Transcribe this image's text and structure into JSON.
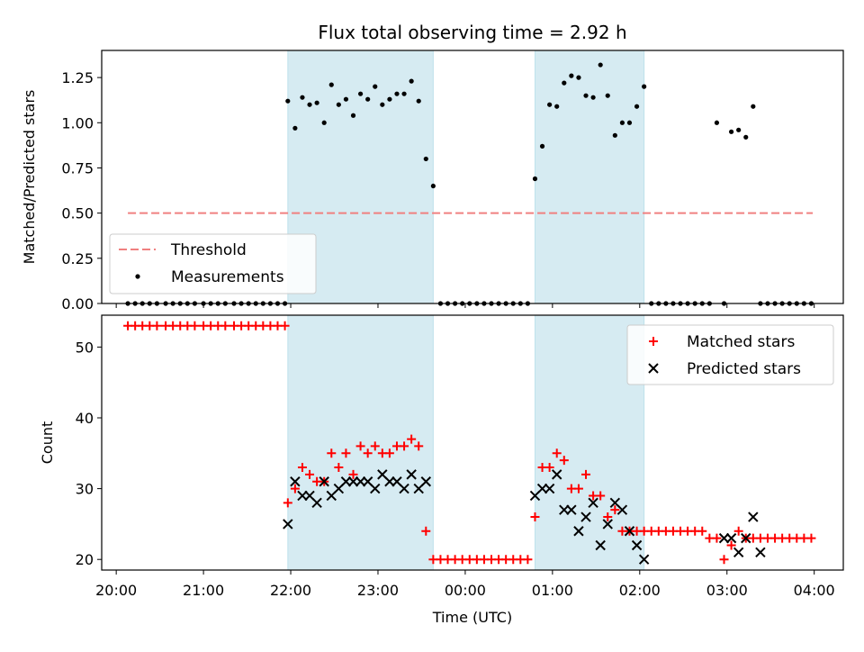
{
  "chart_data": [
    {
      "type": "scatter",
      "title": "Flux total observing time = 2.92 h",
      "xlabel": "",
      "ylabel": "Matched/Predicted stars",
      "ylim": [
        0,
        1.4
      ],
      "yticks": [
        "0.00",
        "0.25",
        "0.50",
        "0.75",
        "1.00",
        "1.25"
      ],
      "xlim": [
        "19:50",
        "04:20"
      ],
      "shaded_intervals": [
        [
          "21:58",
          "23:38"
        ],
        [
          "00:48",
          "02:03"
        ]
      ],
      "legend_position": "lower-left",
      "series": [
        {
          "name": "Threshold",
          "style": "dashed-line",
          "color": "#f08080",
          "x": [
            "20:08",
            "03:59"
          ],
          "y": [
            0.5,
            0.5
          ]
        },
        {
          "name": "Measurements",
          "style": "dot",
          "color": "#000000",
          "x": [
            "20:08",
            "20:13",
            "20:18",
            "20:23",
            "20:28",
            "20:34",
            "20:39",
            "20:44",
            "20:49",
            "20:54",
            "21:00",
            "21:05",
            "21:10",
            "21:15",
            "21:21",
            "21:26",
            "21:31",
            "21:36",
            "21:41",
            "21:46",
            "21:51",
            "21:56",
            "21:58",
            "22:03",
            "22:08",
            "22:13",
            "22:18",
            "22:23",
            "22:28",
            "22:33",
            "22:38",
            "22:43",
            "22:48",
            "22:53",
            "22:58",
            "23:03",
            "23:08",
            "23:13",
            "23:18",
            "23:23",
            "23:28",
            "23:33",
            "23:38",
            "23:43",
            "23:48",
            "23:53",
            "23:58",
            "00:03",
            "00:08",
            "00:13",
            "00:18",
            "00:23",
            "00:28",
            "00:33",
            "00:38",
            "00:43",
            "00:48",
            "00:53",
            "00:58",
            "01:03",
            "01:08",
            "01:13",
            "01:18",
            "01:23",
            "01:28",
            "01:33",
            "01:38",
            "01:43",
            "01:48",
            "01:53",
            "01:58",
            "02:03",
            "02:08",
            "02:13",
            "02:18",
            "02:23",
            "02:28",
            "02:33",
            "02:38",
            "02:43",
            "02:48",
            "02:53",
            "02:58",
            "03:03",
            "03:08",
            "03:13",
            "03:18",
            "03:23",
            "03:28",
            "03:33",
            "03:38",
            "03:43",
            "03:48",
            "03:53",
            "03:58"
          ],
          "y": [
            0,
            0,
            0,
            0,
            0,
            0,
            0,
            0,
            0,
            0,
            0,
            0,
            0,
            0,
            0,
            0,
            0,
            0,
            0,
            0,
            0,
            0,
            1.12,
            0.97,
            1.14,
            1.1,
            1.11,
            1.0,
            1.21,
            1.1,
            1.13,
            1.04,
            1.16,
            1.13,
            1.2,
            1.1,
            1.13,
            1.16,
            1.16,
            1.23,
            1.12,
            0.8,
            0.65,
            0,
            0,
            0,
            0,
            0,
            0,
            0,
            0,
            0,
            0,
            0,
            0,
            0,
            0.69,
            0.87,
            1.1,
            1.09,
            1.22,
            1.26,
            1.25,
            1.15,
            1.14,
            1.32,
            1.15,
            0.93,
            1.0,
            1.0,
            1.09,
            1.2,
            0,
            0,
            0,
            0,
            0,
            0,
            0,
            0,
            0,
            1.0,
            0,
            0.95,
            0.96,
            0.92,
            1.09,
            0,
            0,
            0,
            0,
            0,
            0,
            0,
            0
          ]
        }
      ]
    },
    {
      "type": "scatter",
      "title": "",
      "xlabel": "Time (UTC)",
      "ylabel": "Count",
      "ylim": [
        18.5,
        54.5
      ],
      "yticks": [
        "20",
        "30",
        "40",
        "50"
      ],
      "xlim": [
        "19:50",
        "04:20"
      ],
      "xticks": [
        "20:00",
        "21:00",
        "22:00",
        "23:00",
        "00:00",
        "01:00",
        "02:00",
        "03:00",
        "04:00"
      ],
      "shaded_intervals": [
        [
          "21:58",
          "23:38"
        ],
        [
          "00:48",
          "02:03"
        ]
      ],
      "legend_position": "upper-right",
      "series": [
        {
          "name": "Matched stars",
          "marker": "+",
          "color": "#ff0000",
          "x": [
            "20:08",
            "20:13",
            "20:18",
            "20:23",
            "20:28",
            "20:34",
            "20:39",
            "20:44",
            "20:49",
            "20:54",
            "21:00",
            "21:05",
            "21:10",
            "21:15",
            "21:21",
            "21:26",
            "21:31",
            "21:36",
            "21:41",
            "21:46",
            "21:51",
            "21:56",
            "21:58",
            "22:03",
            "22:08",
            "22:13",
            "22:18",
            "22:23",
            "22:28",
            "22:33",
            "22:38",
            "22:43",
            "22:48",
            "22:53",
            "22:58",
            "23:03",
            "23:08",
            "23:13",
            "23:18",
            "23:23",
            "23:28",
            "23:33",
            "23:38",
            "23:43",
            "23:48",
            "23:53",
            "23:58",
            "00:03",
            "00:08",
            "00:13",
            "00:18",
            "00:23",
            "00:28",
            "00:33",
            "00:38",
            "00:43",
            "00:48",
            "00:53",
            "00:58",
            "01:03",
            "01:08",
            "01:13",
            "01:18",
            "01:23",
            "01:28",
            "01:33",
            "01:38",
            "01:43",
            "01:48",
            "01:53",
            "01:58",
            "02:03",
            "02:08",
            "02:13",
            "02:18",
            "02:23",
            "02:28",
            "02:33",
            "02:38",
            "02:43",
            "02:48",
            "02:53",
            "02:58",
            "03:03",
            "03:08",
            "03:13",
            "03:18",
            "03:23",
            "03:28",
            "03:33",
            "03:38",
            "03:43",
            "03:48",
            "03:53",
            "03:58"
          ],
          "y": [
            53,
            53,
            53,
            53,
            53,
            53,
            53,
            53,
            53,
            53,
            53,
            53,
            53,
            53,
            53,
            53,
            53,
            53,
            53,
            53,
            53,
            53,
            28,
            30,
            33,
            32,
            31,
            31,
            35,
            33,
            35,
            32,
            36,
            35,
            36,
            35,
            35,
            36,
            36,
            37,
            36,
            24,
            20,
            20,
            20,
            20,
            20,
            20,
            20,
            20,
            20,
            20,
            20,
            20,
            20,
            20,
            26,
            33,
            33,
            35,
            34,
            30,
            30,
            32,
            29,
            29,
            26,
            27,
            24,
            24,
            24,
            24,
            24,
            24,
            24,
            24,
            24,
            24,
            24,
            24,
            23,
            23,
            20,
            22,
            24,
            23,
            23,
            23,
            23,
            23,
            23,
            23,
            23,
            23,
            23
          ]
        },
        {
          "name": "Predicted stars",
          "marker": "x",
          "color": "#000000",
          "x": [
            "21:58",
            "22:03",
            "22:08",
            "22:13",
            "22:18",
            "22:23",
            "22:28",
            "22:33",
            "22:38",
            "22:43",
            "22:48",
            "22:53",
            "22:58",
            "23:03",
            "23:08",
            "23:13",
            "23:18",
            "23:23",
            "23:28",
            "23:33",
            "00:48",
            "00:53",
            "00:58",
            "01:03",
            "01:08",
            "01:13",
            "01:18",
            "01:23",
            "01:28",
            "01:33",
            "01:38",
            "01:43",
            "01:48",
            "01:53",
            "01:58",
            "02:03",
            "02:58",
            "03:03",
            "03:08",
            "03:13",
            "03:18",
            "03:23"
          ],
          "y": [
            25,
            31,
            29,
            29,
            28,
            31,
            29,
            30,
            31,
            31,
            31,
            31,
            30,
            32,
            31,
            31,
            30,
            32,
            30,
            31,
            29,
            30,
            30,
            32,
            27,
            27,
            24,
            26,
            28,
            22,
            25,
            28,
            27,
            24,
            22,
            20,
            23,
            23,
            21,
            23,
            26,
            21
          ]
        }
      ]
    }
  ]
}
